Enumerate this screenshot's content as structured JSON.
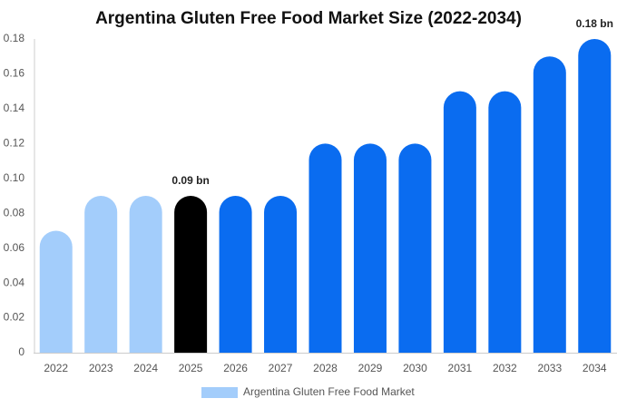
{
  "chart_data": {
    "type": "bar",
    "title": "Argentina Gluten Free Food Market Size (2022-2034)",
    "categories": [
      "2022",
      "2023",
      "2024",
      "2025",
      "2026",
      "2027",
      "2028",
      "2029",
      "2030",
      "2031",
      "2032",
      "2033",
      "2034"
    ],
    "series": [
      {
        "name": "Argentina Gluten Free Food Market",
        "color": "#a3cdfb",
        "values": [
          0.07,
          0.09,
          0.09,
          0.09,
          0.09,
          0.09,
          0.12,
          0.12,
          0.12,
          0.15,
          0.15,
          0.17,
          0.18
        ],
        "value_labels": [
          null,
          null,
          null,
          "0.09 bn",
          null,
          null,
          null,
          null,
          null,
          null,
          null,
          null,
          "0.18 bn"
        ],
        "colors": [
          "#a3cdfb",
          "#a3cdfb",
          "#a3cdfb",
          "#000000",
          "#0a6cf0",
          "#0a6cf0",
          "#0a6cf0",
          "#0a6cf0",
          "#0a6cf0",
          "#0a6cf0",
          "#0a6cf0",
          "#0a6cf0",
          "#0a6cf0"
        ]
      }
    ],
    "ylim": [
      0,
      0.18
    ],
    "yticks": [
      0,
      0.02,
      0.04,
      0.06,
      0.08,
      {
        "value": 0.1,
        "label": "0.10"
      },
      0.12,
      0.14,
      0.16,
      0.18
    ],
    "grid": false
  }
}
